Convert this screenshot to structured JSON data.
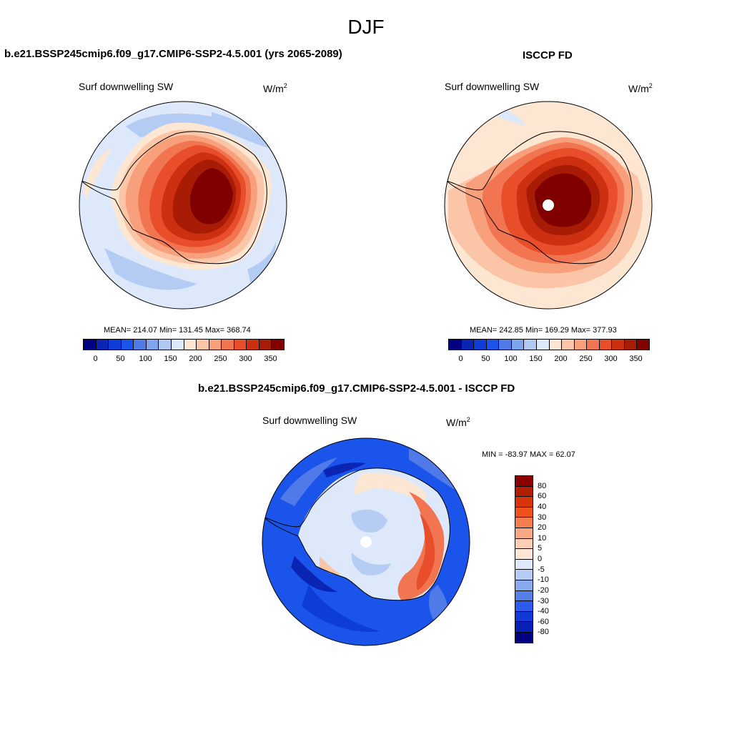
{
  "season_title": "DJF",
  "panels": {
    "model": {
      "title": "b.e21.BSSP245cmip6.f09_g17.CMIP6-SSP2-4.5.001 (yrs 2065-2089)",
      "variable": "Surf downwelling SW",
      "units_base": "W/m",
      "units_sup": "2",
      "stats": "MEAN= 214.07  Min= 131.45  Max= 368.74"
    },
    "obs": {
      "title": "ISCCP FD",
      "variable": "Surf downwelling SW",
      "units_base": "W/m",
      "units_sup": "2",
      "stats": "MEAN= 242.85  Min= 169.29  Max= 377.93"
    },
    "diff": {
      "title": "b.e21.BSSP245cmip6.f09_g17.CMIP6-SSP2-4.5.001 - ISCCP FD",
      "variable": "Surf downwelling SW",
      "units_base": "W/m",
      "units_sup": "2",
      "stats": "MIN = -83.97 MAX =  62.07"
    }
  },
  "colorbar_abs": {
    "colors": [
      "#000080",
      "#0a24b4",
      "#0d3cd6",
      "#1a54ea",
      "#4f7ae8",
      "#7ea4ee",
      "#b0c8f4",
      "#dce9fa",
      "#fde6d2",
      "#fbc6a8",
      "#f8a07c",
      "#f27552",
      "#e84e2a",
      "#cc3010",
      "#a81c06",
      "#800000"
    ],
    "ticks": [
      "0",
      "50",
      "100",
      "150",
      "200",
      "250",
      "300",
      "350"
    ]
  },
  "colorbar_diff": {
    "colors": [
      "#8b0000",
      "#b21e02",
      "#d8340a",
      "#f0521e",
      "#f57e4e",
      "#f9a884",
      "#fccfb4",
      "#fde8d6",
      "#dde9fa",
      "#b6cdf3",
      "#88aaee",
      "#5580ea",
      "#2d5ced",
      "#1338d8",
      "#0920b4",
      "#000080"
    ],
    "ticks": [
      "80",
      "60",
      "40",
      "30",
      "20",
      "10",
      "5",
      "0",
      "-5",
      "-10",
      "-20",
      "-30",
      "-40",
      "-60",
      "-80"
    ]
  },
  "map_colors": {
    "ocean_pale": "#dde9fa",
    "ocean_light_blue": "#b4cbf3",
    "ocean_mid_blue": "#8eb0ef",
    "peach": "#fde6d2",
    "light_salmon": "#fbc6a8",
    "salmon": "#f8a07c",
    "orange": "#f27552",
    "red_orange": "#e84e2a",
    "red": "#cc3010",
    "dark_red": "#a81c06",
    "maroon": "#800000",
    "diff_blue": "#1a54ea",
    "diff_dark_blue": "#0d3cd6",
    "diff_navy": "#0a24b4",
    "diff_mid_blue": "#4f7ae8",
    "diff_light_blue": "#7ea4ee",
    "diff_red": "#e84e2a",
    "pole_hole": "#ffffff"
  }
}
